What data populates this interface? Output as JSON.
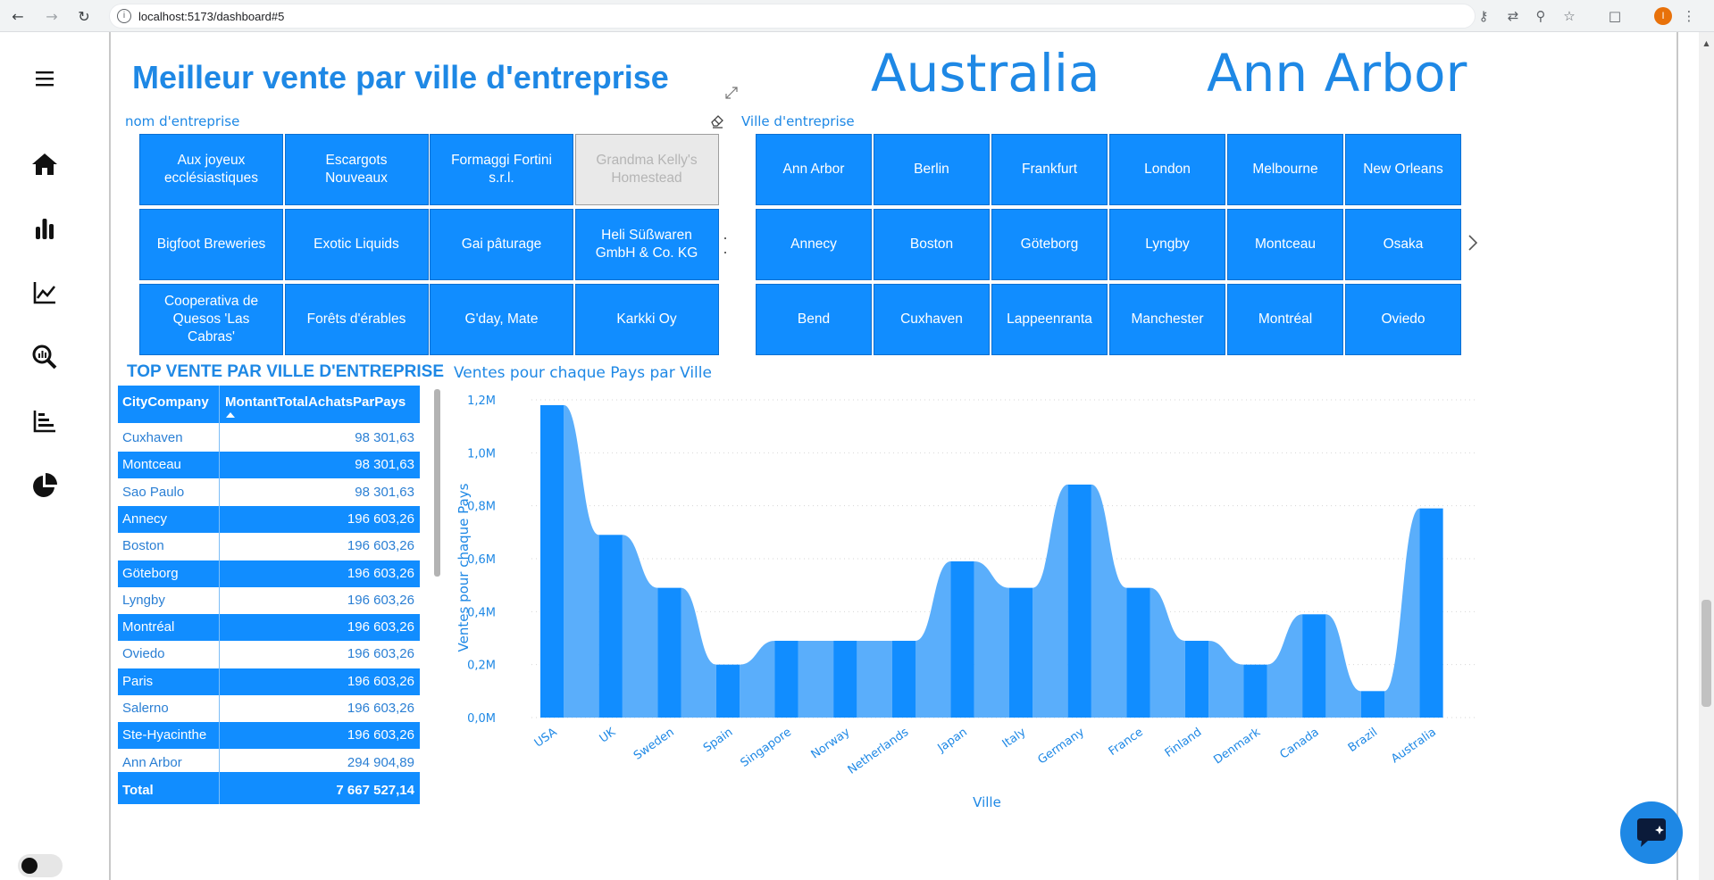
{
  "browser": {
    "url": "localhost:5173/dashboard#5",
    "profile_initial": "I"
  },
  "page": {
    "title": "Meilleur vente par ville d'entreprise",
    "card_country": "Australia",
    "card_city": "Ann Arbor"
  },
  "slicer_company": {
    "label": "nom d'entreprise",
    "items": [
      {
        "label": "Aux joyeux ecclésiastiques",
        "selected": true
      },
      {
        "label": "Escargots Nouveaux",
        "selected": true
      },
      {
        "label": "Formaggi Fortini s.r.l.",
        "selected": true
      },
      {
        "label": "Grandma Kelly's Homestead",
        "selected": false
      },
      {
        "label": "Bigfoot Breweries",
        "selected": true
      },
      {
        "label": "Exotic Liquids",
        "selected": true
      },
      {
        "label": "Gai pâturage",
        "selected": true
      },
      {
        "label": "Heli Süßwaren GmbH & Co. KG",
        "selected": true
      },
      {
        "label": "Cooperativa de Quesos 'Las Cabras'",
        "selected": true
      },
      {
        "label": "Forêts d'érables",
        "selected": true
      },
      {
        "label": "G'day, Mate",
        "selected": true
      },
      {
        "label": "Karkki Oy",
        "selected": true
      }
    ]
  },
  "slicer_city": {
    "label": "Ville d'entreprise",
    "items": [
      "Ann Arbor",
      "Berlin",
      "Frankfurt",
      "London",
      "Melbourne",
      "New Orleans",
      "Annecy",
      "Boston",
      "Göteborg",
      "Lyngby",
      "Montceau",
      "Osaka",
      "Bend",
      "Cuxhaven",
      "Lappeenranta",
      "Manchester",
      "Montréal",
      "Oviedo"
    ]
  },
  "table": {
    "title": "TOP VENTE PAR VILLE D'ENTREPRISE",
    "col1": "CityCompany",
    "col2": "MontantTotalAchatsParPays",
    "rows": [
      {
        "city": "Cuxhaven",
        "amount": "98 301,63"
      },
      {
        "city": "Montceau",
        "amount": "98 301,63"
      },
      {
        "city": "Sao Paulo",
        "amount": "98 301,63"
      },
      {
        "city": "Annecy",
        "amount": "196 603,26"
      },
      {
        "city": "Boston",
        "amount": "196 603,26"
      },
      {
        "city": "Göteborg",
        "amount": "196 603,26"
      },
      {
        "city": "Lyngby",
        "amount": "196 603,26"
      },
      {
        "city": "Montréal",
        "amount": "196 603,26"
      },
      {
        "city": "Oviedo",
        "amount": "196 603,26"
      },
      {
        "city": "Paris",
        "amount": "196 603,26"
      },
      {
        "city": "Salerno",
        "amount": "196 603,26"
      },
      {
        "city": "Ste-Hyacinthe",
        "amount": "196 603,26"
      },
      {
        "city": "Ann Arbor",
        "amount": "294 904,89"
      }
    ],
    "total_label": "Total",
    "total_value": "7 667 527,14"
  },
  "chart_data": {
    "type": "bar",
    "title": "Ventes pour chaque Pays par Ville",
    "xlabel": "Ville",
    "ylabel": "Ventes pour chaque Pays",
    "categories": [
      "USA",
      "UK",
      "Sweden",
      "Spain",
      "Singapore",
      "Norway",
      "Netherlands",
      "Japan",
      "Italy",
      "Germany",
      "France",
      "Finland",
      "Denmark",
      "Canada",
      "Brazil",
      "Australia"
    ],
    "values": [
      1.18,
      0.69,
      0.49,
      0.2,
      0.29,
      0.29,
      0.29,
      0.59,
      0.49,
      0.88,
      0.49,
      0.29,
      0.2,
      0.39,
      0.1,
      0.79
    ],
    "unit": "M",
    "ylim": [
      0,
      1.2
    ],
    "yticks": [
      "0,0M",
      "0,2M",
      "0,4M",
      "0,6M",
      "0,8M",
      "1,0M",
      "1,2M"
    ],
    "grid": true,
    "bar_color": "#118dff",
    "ribbon_color": "#5aaefb"
  }
}
